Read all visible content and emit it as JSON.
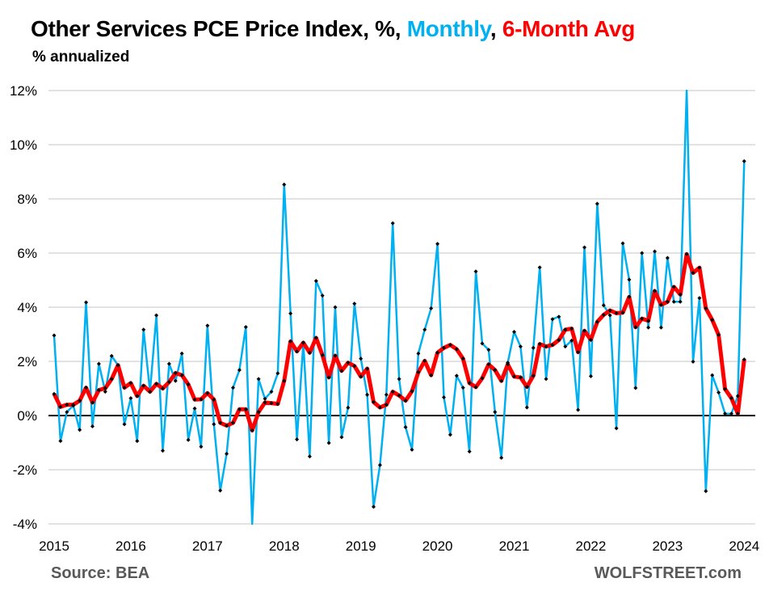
{
  "chart_data": {
    "type": "line",
    "title_parts": {
      "prefix": "Other Services PCE Price Index, %, ",
      "series1": "Monthly",
      "sep": ", ",
      "series2": "6-Month Avg"
    },
    "subtitle": "% annualized",
    "ylim": [
      -4,
      12
    ],
    "yticks": [
      "-4%",
      "-2%",
      "0%",
      "2%",
      "4%",
      "6%",
      "8%",
      "10%",
      "12%"
    ],
    "ytick_values": [
      -4,
      -2,
      0,
      2,
      4,
      6,
      8,
      10,
      12
    ],
    "xticks": [
      "2015",
      "2016",
      "2017",
      "2018",
      "2019",
      "2020",
      "2021",
      "2022",
      "2023",
      "2024"
    ],
    "x_start": "2015-01",
    "x_end": "2024-01",
    "frequency": "monthly",
    "grid": true,
    "colors": {
      "monthly": "#00B0F0",
      "avg": "#FF0000",
      "markers": "#000000",
      "grid": "#D9D9D9"
    },
    "series": [
      {
        "name": "Monthly",
        "values": [
          2.96,
          -0.94,
          0.13,
          0.37,
          -0.53,
          4.18,
          -0.4,
          1.91,
          0.88,
          2.2,
          1.86,
          -0.32,
          0.64,
          -0.94,
          3.17,
          0.88,
          3.7,
          -1.3,
          1.91,
          1.28,
          2.29,
          -0.9,
          0.26,
          -1.15,
          3.32,
          -0.32,
          -2.77,
          -1.41,
          1.03,
          1.68,
          3.27,
          -4.3,
          1.35,
          0.62,
          0.88,
          1.56,
          8.53,
          3.77,
          -0.88,
          2.69,
          -1.51,
          4.97,
          4.43,
          -1.01,
          4.0,
          -0.8,
          0.29,
          4.13,
          2.1,
          0.77,
          -3.37,
          -1.83,
          0.77,
          7.1,
          1.35,
          -0.43,
          -1.26,
          2.29,
          3.17,
          3.96,
          6.34,
          0.67,
          -0.71,
          1.47,
          1.03,
          -1.33,
          5.32,
          2.66,
          2.43,
          0.13,
          -1.56,
          1.95,
          3.09,
          2.55,
          0.3,
          2.5,
          5.47,
          1.35,
          3.56,
          3.65,
          2.55,
          2.77,
          0.21,
          6.21,
          1.45,
          7.82,
          4.07,
          3.7,
          -0.47,
          6.36,
          5.02,
          1.02,
          6.0,
          3.25,
          6.06,
          3.25,
          5.82,
          4.2,
          4.2,
          12.2,
          1.99,
          4.34,
          -2.79,
          1.49,
          0.85,
          0.07,
          0.07,
          0.72,
          9.39
        ]
      },
      {
        "name": "6-Month Avg",
        "values": [
          0.8,
          0.32,
          0.4,
          0.4,
          0.55,
          1.03,
          0.48,
          0.94,
          1.01,
          1.35,
          1.86,
          1.03,
          1.2,
          0.72,
          1.1,
          0.88,
          1.17,
          1.0,
          1.24,
          1.57,
          1.49,
          1.15,
          0.59,
          0.6,
          0.83,
          0.59,
          -0.27,
          -0.37,
          -0.27,
          0.23,
          0.23,
          -0.55,
          0.13,
          0.48,
          0.46,
          0.43,
          1.28,
          2.74,
          2.37,
          2.69,
          2.32,
          2.87,
          2.23,
          1.41,
          2.21,
          1.65,
          1.95,
          1.83,
          1.44,
          1.73,
          0.5,
          0.3,
          0.4,
          0.88,
          0.74,
          0.55,
          0.9,
          1.6,
          2.02,
          1.49,
          2.32,
          2.5,
          2.61,
          2.45,
          2.1,
          1.2,
          1.05,
          1.38,
          1.89,
          1.68,
          1.28,
          1.89,
          1.44,
          1.41,
          1.06,
          1.47,
          2.64,
          2.55,
          2.61,
          2.79,
          3.17,
          3.21,
          2.34,
          3.13,
          2.8,
          3.46,
          3.72,
          3.88,
          3.78,
          3.8,
          4.38,
          3.26,
          3.58,
          3.5,
          4.6,
          4.09,
          4.2,
          4.75,
          4.47,
          5.96,
          5.27,
          5.46,
          3.96,
          3.53,
          2.98,
          0.98,
          0.64,
          0.07,
          2.07
        ]
      }
    ]
  },
  "footer": {
    "source": "Source: BEA",
    "brand": "WOLFSTREET.com"
  }
}
